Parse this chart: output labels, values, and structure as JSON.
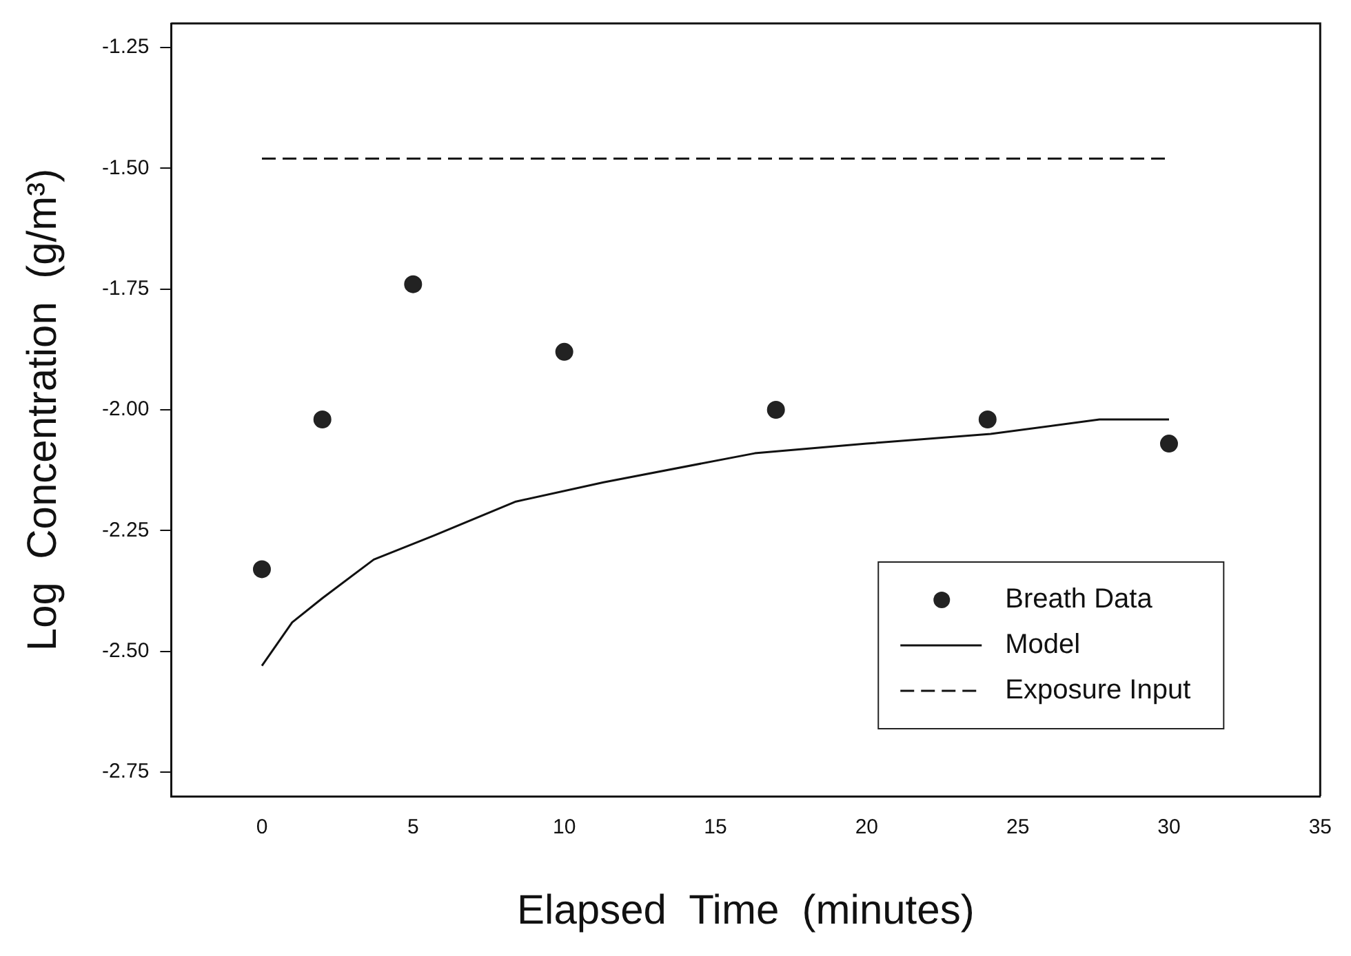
{
  "chart_data": {
    "type": "scatter",
    "xlabel": "Elapsed  Time  (minutes)",
    "ylabel": "Log  Concentration  (g/m³)",
    "xlim": [
      -3,
      35
    ],
    "xticks": [
      0,
      5,
      10,
      15,
      20,
      25,
      30,
      35
    ],
    "ylim": [
      -2.8,
      -1.2
    ],
    "yticks": [
      {
        "value": -1.25,
        "label": "-1.25"
      },
      {
        "value": -1.5,
        "label": "-1.50"
      },
      {
        "value": -1.75,
        "label": "-1.75"
      },
      {
        "value": -2,
        "label": "-2.00"
      },
      {
        "value": -2.25,
        "label": "-2.25"
      },
      {
        "value": -2.5,
        "label": "-2.50"
      },
      {
        "value": -2.75,
        "label": "-2.75"
      }
    ],
    "legend": "bottom right",
    "grid": false,
    "series": [
      {
        "name": "Breath Data",
        "type": "scatter",
        "marker": "circle",
        "color": "#222222",
        "x": [
          0,
          2,
          5,
          10,
          17,
          24,
          30
        ],
        "values": [
          -2.33,
          -2.02,
          -1.74,
          -1.88,
          -2.0,
          -2.02,
          -2.07
        ]
      },
      {
        "name": "Model",
        "type": "line",
        "marker": "none",
        "line_style": "solid",
        "color": "#111111",
        "x": [
          0,
          1,
          2,
          3.7,
          5.7,
          8.4,
          11.3,
          16.3,
          20,
          24.1,
          27.7,
          30
        ],
        "values": [
          -2.53,
          -2.44,
          -2.39,
          -2.31,
          -2.26,
          -2.19,
          -2.15,
          -2.09,
          -2.07,
          -2.05,
          -2.02,
          -2.02
        ]
      },
      {
        "name": "Exposure Input",
        "type": "line",
        "marker": "none",
        "line_style": "dashed",
        "color": "#111111",
        "x": [
          0,
          30
        ],
        "values": [
          -1.48,
          -1.48
        ]
      }
    ]
  }
}
